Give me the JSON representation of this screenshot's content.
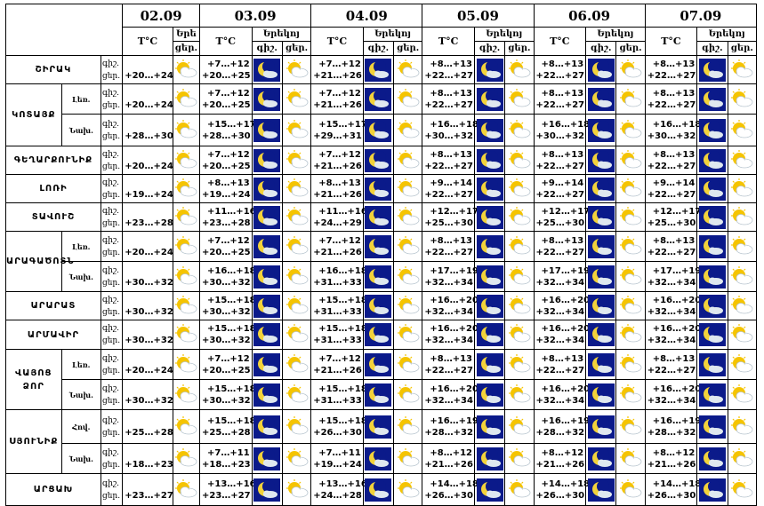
{
  "header": {
    "dates": [
      "02.09",
      "03.09",
      "04.09",
      "05.09",
      "06.09",
      "07.09"
    ],
    "tc_label": "T°C",
    "tomorrow_short": "Երե",
    "tomorrow_label": "Երեկոյ",
    "night_label": "գիշ.",
    "day_label": "ցեր."
  },
  "row_labels": {
    "night": "գիշ.",
    "day": "ցեր."
  },
  "icons": {
    "night": "moon-cloud-icon",
    "day": "sun-cloud-icon"
  },
  "colors": {
    "night_bg": "#0b1a8a",
    "moon": "#f2d23b",
    "sun": "#f5c400",
    "cloud": "#dfe8ef"
  },
  "regions": [
    {
      "name": "ՇԻՐԱԿ",
      "sub": "",
      "d0": "+20…+24",
      "t": [
        [
          "+7…+12",
          "+20…+25"
        ],
        [
          "+7…+12",
          "+21…+26"
        ],
        [
          "+8…+13",
          "+22…+27"
        ],
        [
          "+8…+13",
          "+22…+27"
        ],
        [
          "+8…+13",
          "+22…+27"
        ]
      ]
    },
    {
      "name": "ԿՈՏԱՅՔ",
      "sub": "Լեռ.",
      "d0": "+20…+24",
      "t": [
        [
          "+7…+12",
          "+20…+25"
        ],
        [
          "+7…+12",
          "+21…+26"
        ],
        [
          "+8…+13",
          "+22…+27"
        ],
        [
          "+8…+13",
          "+22…+27"
        ],
        [
          "+8…+13",
          "+22…+27"
        ]
      ]
    },
    {
      "name": "",
      "sub": "Նախ.",
      "d0": "+28…+30",
      "t": [
        [
          "+15…+17",
          "+28…+30"
        ],
        [
          "+15…+17",
          "+29…+31"
        ],
        [
          "+16…+18",
          "+30…+32"
        ],
        [
          "+16…+18",
          "+30…+32"
        ],
        [
          "+16…+18",
          "+30…+32"
        ]
      ]
    },
    {
      "name": "ԳԵՂԱՐՔՈՒՆԻՔ",
      "sub": "",
      "d0": "+20…+24",
      "t": [
        [
          "+7…+12",
          "+20…+25"
        ],
        [
          "+7…+12",
          "+21…+26"
        ],
        [
          "+8…+13",
          "+22…+27"
        ],
        [
          "+8…+13",
          "+22…+27"
        ],
        [
          "+8…+13",
          "+22…+27"
        ]
      ]
    },
    {
      "name": "ԼՈՌԻ",
      "sub": "",
      "d0": "+19…+24",
      "t": [
        [
          "+8…+13",
          "+19…+24"
        ],
        [
          "+8…+13",
          "+21…+26"
        ],
        [
          "+9…+14",
          "+22…+27"
        ],
        [
          "+9…+14",
          "+22…+27"
        ],
        [
          "+9…+14",
          "+22…+27"
        ]
      ]
    },
    {
      "name": "ՏԱՎՈՒՇ",
      "sub": "",
      "d0": "+23…+28",
      "t": [
        [
          "+11…+16",
          "+23…+28"
        ],
        [
          "+11…+16",
          "+24…+29"
        ],
        [
          "+12…+17",
          "+25…+30"
        ],
        [
          "+12…+17",
          "+25…+30"
        ],
        [
          "+12…+17",
          "+25…+30"
        ]
      ]
    },
    {
      "name": "ԱՐԱԳԱԾՈՏՆ",
      "sub": "Լեռ.",
      "d0": "+20…+24",
      "t": [
        [
          "+7…+12",
          "+20…+25"
        ],
        [
          "+7…+12",
          "+21…+26"
        ],
        [
          "+8…+13",
          "+22…+27"
        ],
        [
          "+8…+13",
          "+22…+27"
        ],
        [
          "+8…+13",
          "+22…+27"
        ]
      ]
    },
    {
      "name": "",
      "sub": "Նախ.",
      "d0": "+30…+32",
      "t": [
        [
          "+16…+18",
          "+30…+32"
        ],
        [
          "+16…+18",
          "+31…+33"
        ],
        [
          "+17…+19",
          "+32…+34"
        ],
        [
          "+17…+19",
          "+32…+34"
        ],
        [
          "+17…+19",
          "+32…+34"
        ]
      ]
    },
    {
      "name": "ԱՐԱՐԱՏ",
      "sub": "",
      "d0": "+30…+32",
      "t": [
        [
          "+15…+18",
          "+30…+32"
        ],
        [
          "+15…+18",
          "+31…+33"
        ],
        [
          "+16…+20",
          "+32…+34"
        ],
        [
          "+16…+20",
          "+32…+34"
        ],
        [
          "+16…+20",
          "+32…+34"
        ]
      ]
    },
    {
      "name": "ԱՐՄԱՎԻՐ",
      "sub": "",
      "d0": "+30…+32",
      "t": [
        [
          "+15…+18",
          "+30…+32"
        ],
        [
          "+15…+18",
          "+31…+33"
        ],
        [
          "+16…+20",
          "+32…+34"
        ],
        [
          "+16…+20",
          "+32…+34"
        ],
        [
          "+16…+20",
          "+32…+34"
        ]
      ]
    },
    {
      "name": "ՎԱՅՈՑ ՁՈՐ",
      "sub": "Լեռ.",
      "d0": "+20…+24",
      "t": [
        [
          "+7…+12",
          "+20…+25"
        ],
        [
          "+7…+12",
          "+21…+26"
        ],
        [
          "+8…+13",
          "+22…+27"
        ],
        [
          "+8…+13",
          "+22…+27"
        ],
        [
          "+8…+13",
          "+22…+27"
        ]
      ]
    },
    {
      "name": "",
      "sub": "Նախ.",
      "d0": "+30…+32",
      "t": [
        [
          "+15…+18",
          "+30…+32"
        ],
        [
          "+15…+18",
          "+31…+33"
        ],
        [
          "+16…+20",
          "+32…+34"
        ],
        [
          "+16…+20",
          "+32…+34"
        ],
        [
          "+16…+20",
          "+32…+34"
        ]
      ]
    },
    {
      "name": "ՍՅՈՒՆԻՔ",
      "sub": "Հով.",
      "d0": "+25…+28",
      "t": [
        [
          "+15…+18",
          "+25…+28"
        ],
        [
          "+15…+18",
          "+26…+30"
        ],
        [
          "+16…+19",
          "+28…+32"
        ],
        [
          "+16…+19",
          "+28…+32"
        ],
        [
          "+16…+19",
          "+28…+32"
        ]
      ]
    },
    {
      "name": "",
      "sub": "Նախ.",
      "d0": "+18…+23",
      "t": [
        [
          "+7…+11",
          "+18…+23"
        ],
        [
          "+7…+11",
          "+19…+24"
        ],
        [
          "+8…+12",
          "+21…+26"
        ],
        [
          "+8…+12",
          "+21…+26"
        ],
        [
          "+8…+12",
          "+21…+26"
        ]
      ]
    },
    {
      "name": "ԱՐՑԱԽ",
      "sub": "",
      "d0": "+23…+27",
      "t": [
        [
          "+13…+16",
          "+23…+27"
        ],
        [
          "+13…+16",
          "+24…+28"
        ],
        [
          "+14…+18",
          "+26…+30"
        ],
        [
          "+14…+18",
          "+26…+30"
        ],
        [
          "+14…+18",
          "+26…+30"
        ]
      ]
    }
  ]
}
